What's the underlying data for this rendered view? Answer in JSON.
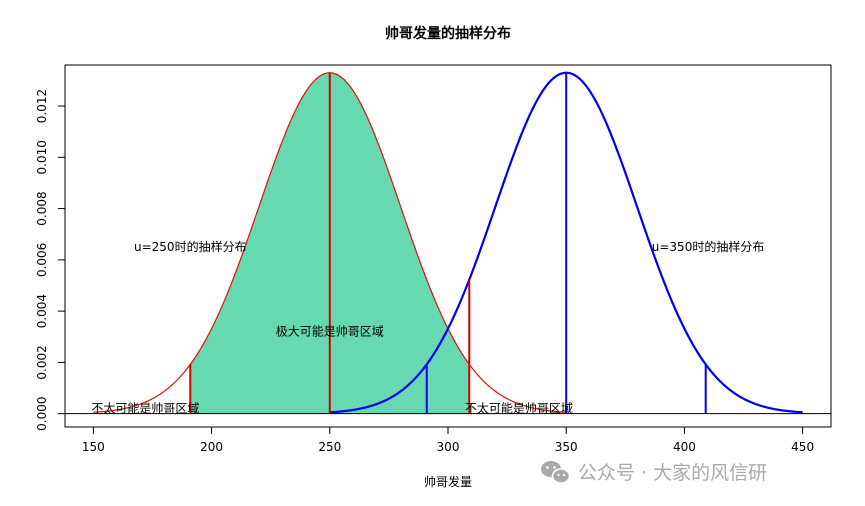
{
  "chart_data": {
    "type": "line",
    "title": "帅哥发量的抽样分布",
    "xlabel": "帅哥发量",
    "ylabel": "",
    "xlim": [
      138,
      462
    ],
    "ylim": [
      -0.00052,
      0.0136
    ],
    "x_ticks": [
      150,
      200,
      250,
      300,
      350,
      400,
      450
    ],
    "y_ticks": [
      0.0,
      0.002,
      0.004,
      0.006,
      0.008,
      0.01,
      0.012
    ],
    "y_tick_labels": [
      "0.000",
      "0.002",
      "0.004",
      "0.006",
      "0.008",
      "0.010",
      "0.012"
    ],
    "series": [
      {
        "mean": 250,
        "sd": 30,
        "x_range": [
          150,
          350
        ],
        "color": "#dd1111",
        "fill_color": "#66d9b0",
        "fill_range": [
          191,
          309
        ]
      },
      {
        "mean": 350,
        "sd": 30,
        "x_range": [
          250,
          450
        ],
        "color": "#0000ee"
      }
    ],
    "vlines": [
      {
        "x": 191,
        "color": "#cc0000"
      },
      {
        "x": 250,
        "color": "#cc0000"
      },
      {
        "x": 309,
        "color": "#cc0000"
      },
      {
        "x": 291,
        "color": "#0000ee"
      },
      {
        "x": 350,
        "color": "#0000ee"
      },
      {
        "x": 409,
        "color": "#0000ee"
      }
    ],
    "hline_y": 0,
    "annotations": [
      {
        "text": "u=250时的抽样分布",
        "x": 191,
        "y": 0.0065
      },
      {
        "text": "极大可能是帅哥区域",
        "x": 250,
        "y": 0.0032
      },
      {
        "text": "不太可能是帅哥区域",
        "x": 172,
        "y": 0.0002
      },
      {
        "text": "不太可能是帅哥区域",
        "x": 330,
        "y": 0.0002
      },
      {
        "text": "u=350时的抽样分布",
        "x": 410,
        "y": 0.0065
      }
    ],
    "grid": false
  },
  "watermark": {
    "icon": "wechat-icon",
    "text": "公众号 · 大家的风信研"
  }
}
